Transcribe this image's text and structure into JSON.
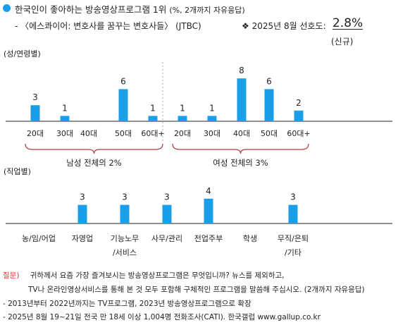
{
  "header": {
    "title": "한국인이 좋아하는 방송영상프로그램 1위",
    "title_sub": "(%, 2개까지 자유응답)",
    "program": "- 〈에스콰이어: 변호사를 꿈꾸는 변호사들〉 (JTBC)",
    "pref_label": "❖ 2025년 8월 선호도:",
    "pref_value": "2.8%",
    "pref_note": "(신규)"
  },
  "colors": {
    "accent": "#1a9ee8",
    "bar": "#1a9ee8",
    "bracket": "#b33a3a",
    "question": "#e0342c"
  },
  "chart_data": [
    {
      "type": "bar",
      "section_label": "(성/연령별)",
      "groups": [
        {
          "label": "남성 전체의 2%",
          "categories": [
            "20대",
            "30대",
            "40대",
            "50대",
            "60대+"
          ],
          "values": [
            3,
            1,
            0,
            6,
            1
          ]
        },
        {
          "label": "여성 전체의 3%",
          "categories": [
            "20대",
            "30대",
            "40대",
            "50대",
            "60대+"
          ],
          "values": [
            1,
            1,
            8,
            6,
            2
          ]
        }
      ]
    },
    {
      "type": "bar",
      "section_label": "(직업별)",
      "categories": [
        "농/임/어업",
        "자영업",
        "기능노무/서비스",
        "사무/관리",
        "전업주부",
        "학생",
        "무직/은퇴/기타"
      ],
      "category_lines": [
        [
          "농/임/어업"
        ],
        [
          "자영업"
        ],
        [
          "기능노무",
          "/서비스"
        ],
        [
          "사무/관리"
        ],
        [
          "전업주부"
        ],
        [
          "학생"
        ],
        [
          "무직/은퇴",
          "/기타"
        ]
      ],
      "values": [
        null,
        3,
        3,
        3,
        4,
        null,
        3
      ]
    }
  ],
  "footer": {
    "q_label": "질문)",
    "q_line1": "귀하께서 요즘 가장 즐겨보시는 방송영상프로그램은 무엇입니까? 뉴스를 제외하고,",
    "q_line2": "TV나 온라인영상서비스를 통해 본 것 모두 포함해 구체적인 프로그램을 말씀해 주십시오. (2개까지 자유응답)",
    "note1": "- 2013년부터 2022년까지는 TV프로그램, 2023년 방송영상프로그램으로 확장",
    "note2": "- 2025년 8월 19~21일 전국 만 18세 이상 1,004명 전화조사(CATI). 한국갤럽 www.gallup.co.kr"
  }
}
